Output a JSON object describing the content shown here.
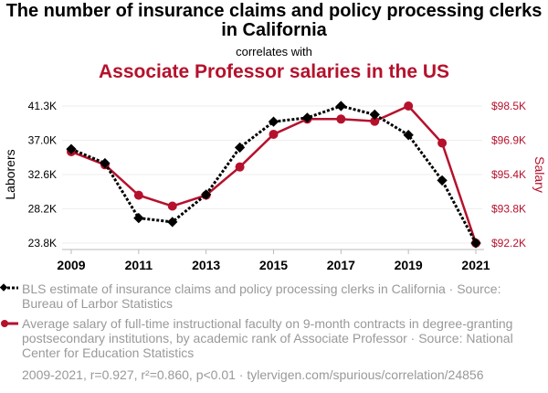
{
  "header": {
    "title": "The number of insurance claims and policy processing clerks in California",
    "correlates": "correlates with",
    "subtitle": "Associate Professor salaries in the US"
  },
  "chart_data": {
    "type": "line",
    "x": [
      2009,
      2010,
      2011,
      2012,
      2013,
      2014,
      2015,
      2016,
      2017,
      2018,
      2019,
      2020,
      2021
    ],
    "x_ticks": [
      "2009",
      "2011",
      "2013",
      "2015",
      "2017",
      "2019",
      "2021"
    ],
    "left_axis": {
      "label": "Laborers",
      "ticks": [
        "41.3K",
        "37.0K",
        "32.6K",
        "28.2K",
        "23.8K"
      ],
      "range": [
        23.8,
        41.3
      ]
    },
    "right_axis": {
      "label": "Salary",
      "ticks": [
        "$98.5K",
        "$96.9K",
        "$95.4K",
        "$93.8K",
        "$92.2K"
      ],
      "range": [
        92.2,
        98.5
      ]
    },
    "grid": true,
    "series": [
      {
        "name": "BLS estimate of insurance claims and policy processing clerks in California",
        "axis": "left",
        "unit": "K",
        "color": "#000000",
        "values": [
          35.8,
          34.0,
          27.0,
          26.5,
          30.0,
          36.0,
          39.3,
          39.8,
          41.3,
          40.2,
          37.6,
          31.8,
          23.8
        ]
      },
      {
        "name": "Average salary of full-time instructional faculty",
        "axis": "right",
        "unit": "$K",
        "color": "#b5112c",
        "values": [
          96.4,
          95.8,
          94.4,
          93.9,
          94.4,
          95.7,
          97.2,
          97.9,
          97.9,
          97.8,
          98.5,
          96.8,
          92.2
        ]
      }
    ]
  },
  "legend": {
    "item1": "BLS estimate of insurance claims and policy processing clerks in California · Source: Bureau of Larbor Statistics",
    "item2": "Average salary of full-time instructional faculty on 9-month contracts in degree-granting postsecondary institutions, by academic rank of Associate Professor · Source: National Center for Education Statistics"
  },
  "footer": "2009-2021, r=0.927, r²=0.860, p<0.01 · tylervigen.com/spurious/correlation/24856"
}
